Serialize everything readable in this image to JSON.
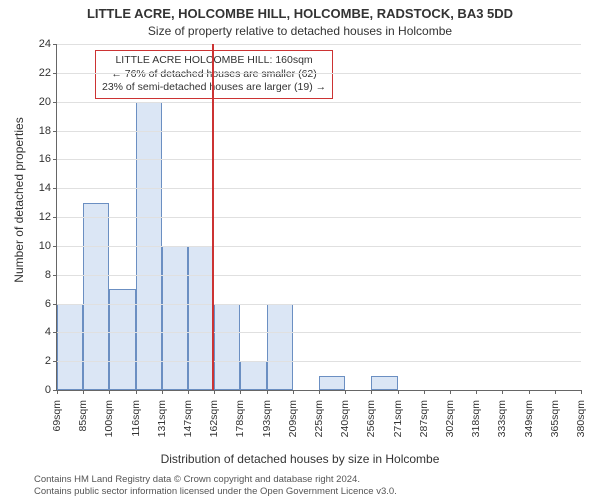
{
  "title_line1": "LITTLE ACRE, HOLCOMBE HILL, HOLCOMBE, RADSTOCK, BA3 5DD",
  "title_line2": "Size of property relative to detached houses in Holcombe",
  "ylabel": "Number of detached properties",
  "xlabel": "Distribution of detached houses by size in Holcombe",
  "footer_line1": "Contains HM Land Registry data © Crown copyright and database right 2024.",
  "footer_line2": "Contains public sector information licensed under the Open Government Licence v3.0.",
  "chart": {
    "type": "histogram",
    "ymax": 24,
    "ytick_step": 2,
    "categories": [
      "69sqm",
      "85sqm",
      "100sqm",
      "116sqm",
      "131sqm",
      "147sqm",
      "162sqm",
      "178sqm",
      "193sqm",
      "209sqm",
      "225sqm",
      "240sqm",
      "256sqm",
      "271sqm",
      "287sqm",
      "302sqm",
      "318sqm",
      "333sqm",
      "349sqm",
      "365sqm",
      "380sqm"
    ],
    "values": [
      6,
      13,
      7,
      20,
      10,
      10,
      6,
      2,
      6,
      0,
      1,
      0,
      1,
      0,
      0,
      0,
      0,
      0,
      0,
      0
    ],
    "bar_fill": "#dbe6f5",
    "bar_border": "#6b8fc2",
    "axis_color": "#666666",
    "grid_color": "#e0e0e0",
    "background_color": "#ffffff",
    "title_fontsize": 13,
    "subtitle_fontsize": 12,
    "label_fontsize": 12,
    "tick_fontsize": 11,
    "reference_line": {
      "category_index": 6,
      "value_sqm": 160,
      "color": "#cc3333"
    },
    "annotation": {
      "line1": "LITTLE ACRE HOLCOMBE HILL: 160sqm",
      "line2": "← 76% of detached houses are smaller (62)",
      "line3": "23% of semi-detached houses are larger (19) →",
      "border_color": "#cc3333",
      "fontsize": 10.5
    }
  }
}
